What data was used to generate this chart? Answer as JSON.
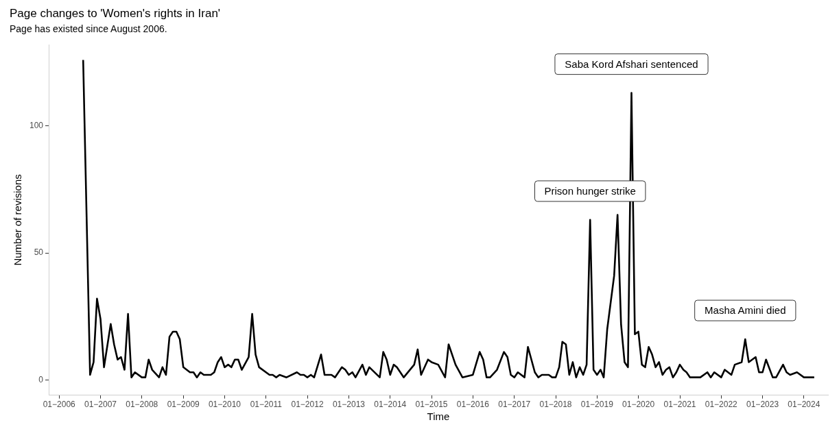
{
  "chart_data": {
    "type": "line",
    "title": "Page changes to 'Women's rights in Iran'",
    "subtitle": "Page has existed since August 2006.",
    "xlabel": "Time",
    "ylabel": "Number of revisions",
    "x": [
      "2006-08",
      "2006-10",
      "2006-11",
      "2006-12",
      "2007-01",
      "2007-02",
      "2007-04",
      "2007-05",
      "2007-06",
      "2007-07",
      "2007-08",
      "2007-09",
      "2007-10",
      "2007-11",
      "2008-01",
      "2008-02",
      "2008-03",
      "2008-04",
      "2008-06",
      "2008-07",
      "2008-08",
      "2008-09",
      "2008-10",
      "2008-11",
      "2008-12",
      "2009-01",
      "2009-03",
      "2009-04",
      "2009-05",
      "2009-06",
      "2009-07",
      "2009-09",
      "2009-10",
      "2009-11",
      "2009-12",
      "2010-01",
      "2010-02",
      "2010-03",
      "2010-04",
      "2010-05",
      "2010-06",
      "2010-08",
      "2010-09",
      "2010-10",
      "2010-11",
      "2011-02",
      "2011-03",
      "2011-04",
      "2011-05",
      "2011-07",
      "2011-10",
      "2011-11",
      "2011-12",
      "2012-01",
      "2012-02",
      "2012-03",
      "2012-05",
      "2012-06",
      "2012-08",
      "2012-09",
      "2012-11",
      "2012-12",
      "2013-01",
      "2013-02",
      "2013-03",
      "2013-05",
      "2013-06",
      "2013-07",
      "2013-10",
      "2013-11",
      "2013-12",
      "2014-01",
      "2014-02",
      "2014-03",
      "2014-05",
      "2014-08",
      "2014-09",
      "2014-10",
      "2014-12",
      "2015-01",
      "2015-03",
      "2015-05",
      "2015-06",
      "2015-08",
      "2015-10",
      "2016-01",
      "2016-03",
      "2016-04",
      "2016-05",
      "2016-06",
      "2016-08",
      "2016-10",
      "2016-11",
      "2016-12",
      "2017-01",
      "2017-02",
      "2017-04",
      "2017-05",
      "2017-07",
      "2017-08",
      "2017-09",
      "2017-11",
      "2017-12",
      "2018-01",
      "2018-02",
      "2018-03",
      "2018-04",
      "2018-05",
      "2018-06",
      "2018-07",
      "2018-08",
      "2018-09",
      "2018-10",
      "2018-11",
      "2018-12",
      "2019-01",
      "2019-02",
      "2019-03",
      "2019-04",
      "2019-06",
      "2019-07",
      "2019-08",
      "2019-09",
      "2019-10",
      "2019-11",
      "2019-12",
      "2020-01",
      "2020-02",
      "2020-03",
      "2020-04",
      "2020-05",
      "2020-06",
      "2020-07",
      "2020-08",
      "2020-09",
      "2020-10",
      "2020-11",
      "2020-12",
      "2021-01",
      "2021-02",
      "2021-03",
      "2021-04",
      "2021-07",
      "2021-09",
      "2021-10",
      "2021-11",
      "2022-01",
      "2022-02",
      "2022-04",
      "2022-05",
      "2022-07",
      "2022-08",
      "2022-09",
      "2022-11",
      "2022-12",
      "2023-01",
      "2023-02",
      "2023-04",
      "2023-05",
      "2023-07",
      "2023-08",
      "2023-09",
      "2023-11",
      "2024-01",
      "2024-04"
    ],
    "series": [
      {
        "color": "#000000",
        "values": [
          126,
          2,
          7,
          32,
          24,
          5,
          22,
          14,
          8,
          9,
          4,
          26,
          1,
          3,
          1,
          1,
          8,
          4,
          1,
          5,
          2,
          17,
          19,
          19,
          16,
          5,
          3,
          3,
          1,
          3,
          2,
          2,
          3,
          7,
          9,
          5,
          6,
          5,
          8,
          8,
          4,
          9,
          26,
          10,
          5,
          2,
          2,
          1,
          2,
          1,
          3,
          2,
          2,
          1,
          2,
          1,
          10,
          2,
          2,
          1,
          5,
          4,
          2,
          3,
          1,
          6,
          2,
          5,
          1,
          11,
          8,
          2,
          6,
          5,
          1,
          6,
          12,
          2,
          8,
          7,
          6,
          1,
          14,
          6,
          1,
          2,
          11,
          8,
          1,
          1,
          4,
          11,
          9,
          2,
          1,
          3,
          1,
          13,
          3,
          1,
          2,
          2,
          1,
          1,
          5,
          15,
          14,
          2,
          7,
          1,
          5,
          2,
          6,
          63,
          4,
          2,
          4,
          1,
          20,
          41,
          65,
          22,
          7,
          5,
          113,
          18,
          19,
          6,
          5,
          13,
          10,
          5,
          7,
          2,
          4,
          5,
          1,
          3,
          6,
          4,
          3,
          1,
          1,
          3,
          1,
          3,
          1,
          4,
          2,
          6,
          7,
          16,
          7,
          9,
          3,
          3,
          8,
          1,
          1,
          6,
          3,
          2,
          3,
          1,
          1
        ]
      }
    ],
    "xticks": [
      {
        "value": "2006-01",
        "label": "01−2006"
      },
      {
        "value": "2007-01",
        "label": "01−2007"
      },
      {
        "value": "2008-01",
        "label": "01−2008"
      },
      {
        "value": "2009-01",
        "label": "01−2009"
      },
      {
        "value": "2010-01",
        "label": "01−2010"
      },
      {
        "value": "2011-01",
        "label": "01−2011"
      },
      {
        "value": "2012-01",
        "label": "01−2012"
      },
      {
        "value": "2013-01",
        "label": "01−2013"
      },
      {
        "value": "2014-01",
        "label": "01−2014"
      },
      {
        "value": "2015-01",
        "label": "01−2015"
      },
      {
        "value": "2016-01",
        "label": "01−2016"
      },
      {
        "value": "2017-01",
        "label": "01−2017"
      },
      {
        "value": "2018-01",
        "label": "01−2018"
      },
      {
        "value": "2019-01",
        "label": "01−2019"
      },
      {
        "value": "2020-01",
        "label": "01−2020"
      },
      {
        "value": "2021-01",
        "label": "01−2021"
      },
      {
        "value": "2022-01",
        "label": "01−2022"
      },
      {
        "value": "2023-01",
        "label": "01−2023"
      },
      {
        "value": "2024-01",
        "label": "01−2024"
      }
    ],
    "xlim": [
      "2005-10",
      "2024-08"
    ],
    "ylim": [
      -6,
      132
    ],
    "yticks": [
      0,
      50,
      100
    ],
    "annotations": [
      {
        "text": "Saba Kord Afshari sentenced",
        "x": "2019-11",
        "y": 113
      },
      {
        "text": "Prison hunger strike",
        "x": "2018-11",
        "y": 63
      },
      {
        "text": "Masha Amini died",
        "x": "2022-08",
        "y": 16
      }
    ],
    "grid": false,
    "legend": false,
    "marker": "none",
    "line_style": "solid"
  }
}
